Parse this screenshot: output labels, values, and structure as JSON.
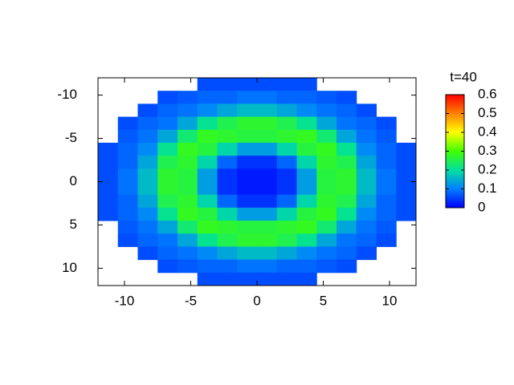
{
  "chart_data": {
    "type": "heatmap",
    "xlim": [
      -12,
      12
    ],
    "ylim": [
      12,
      -12
    ],
    "xticks": [
      -10,
      -5,
      0,
      5,
      10
    ],
    "yticks": [
      -10,
      -5,
      0,
      5,
      10
    ],
    "x": [
      -11.25,
      -9.75,
      -8.25,
      -6.75,
      -5.25,
      -3.75,
      -2.25,
      -0.75,
      0.75,
      2.25,
      3.75,
      5.25,
      6.75,
      8.25,
      9.75,
      11.25
    ],
    "y": [
      -11.25,
      -9.75,
      -8.25,
      -6.75,
      -5.25,
      -3.75,
      -2.25,
      -0.75,
      0.75,
      2.25,
      3.75,
      5.25,
      6.75,
      8.25,
      9.75,
      11.25
    ],
    "z": [
      [
        null,
        null,
        null,
        null,
        null,
        0.06,
        0.06,
        0.06,
        0.06,
        0.06,
        0.06,
        null,
        null,
        null,
        null,
        null
      ],
      [
        null,
        null,
        null,
        0.06,
        0.07,
        0.08,
        0.08,
        0.09,
        0.09,
        0.08,
        0.08,
        0.07,
        0.06,
        null,
        null,
        null
      ],
      [
        null,
        null,
        0.06,
        0.08,
        0.09,
        0.11,
        0.14,
        0.16,
        0.16,
        0.14,
        0.11,
        0.09,
        0.08,
        0.06,
        null,
        null
      ],
      [
        null,
        0.06,
        0.08,
        0.09,
        0.14,
        0.21,
        0.25,
        0.27,
        0.27,
        0.25,
        0.21,
        0.14,
        0.09,
        0.08,
        0.06,
        null
      ],
      [
        null,
        0.07,
        0.09,
        0.14,
        0.23,
        0.28,
        0.27,
        0.26,
        0.26,
        0.27,
        0.28,
        0.23,
        0.14,
        0.09,
        0.07,
        null
      ],
      [
        0.06,
        0.08,
        0.11,
        0.21,
        0.28,
        0.26,
        0.19,
        0.13,
        0.13,
        0.19,
        0.26,
        0.28,
        0.21,
        0.11,
        0.08,
        0.06
      ],
      [
        0.06,
        0.08,
        0.14,
        0.25,
        0.27,
        0.19,
        0.08,
        0.04,
        0.04,
        0.08,
        0.19,
        0.27,
        0.25,
        0.14,
        0.08,
        0.06
      ],
      [
        0.06,
        0.09,
        0.16,
        0.27,
        0.26,
        0.13,
        0.04,
        0.02,
        0.02,
        0.04,
        0.13,
        0.26,
        0.27,
        0.16,
        0.09,
        0.06
      ],
      [
        0.06,
        0.09,
        0.16,
        0.27,
        0.26,
        0.13,
        0.04,
        0.02,
        0.02,
        0.04,
        0.13,
        0.26,
        0.27,
        0.16,
        0.09,
        0.06
      ],
      [
        0.06,
        0.08,
        0.14,
        0.25,
        0.27,
        0.19,
        0.08,
        0.04,
        0.04,
        0.08,
        0.19,
        0.27,
        0.25,
        0.14,
        0.08,
        0.06
      ],
      [
        0.06,
        0.08,
        0.11,
        0.21,
        0.28,
        0.26,
        0.19,
        0.13,
        0.13,
        0.19,
        0.26,
        0.28,
        0.21,
        0.11,
        0.08,
        0.06
      ],
      [
        null,
        0.07,
        0.09,
        0.14,
        0.23,
        0.28,
        0.27,
        0.26,
        0.26,
        0.27,
        0.28,
        0.23,
        0.14,
        0.09,
        0.07,
        null
      ],
      [
        null,
        0.06,
        0.08,
        0.09,
        0.14,
        0.21,
        0.25,
        0.27,
        0.27,
        0.25,
        0.21,
        0.14,
        0.09,
        0.08,
        0.06,
        null
      ],
      [
        null,
        null,
        0.06,
        0.08,
        0.09,
        0.11,
        0.14,
        0.16,
        0.16,
        0.14,
        0.11,
        0.09,
        0.08,
        0.06,
        null,
        null
      ],
      [
        null,
        null,
        null,
        0.06,
        0.07,
        0.08,
        0.08,
        0.09,
        0.09,
        0.08,
        0.08,
        0.07,
        0.06,
        null,
        null,
        null
      ],
      [
        null,
        null,
        null,
        null,
        null,
        0.06,
        0.06,
        0.06,
        0.06,
        0.06,
        0.06,
        null,
        null,
        null,
        null,
        null
      ]
    ],
    "colorbar": {
      "title": "t=40",
      "lim": [
        0,
        0.6
      ],
      "ticks": [
        0,
        0.1,
        0.2,
        0.3,
        0.4,
        0.5,
        0.6
      ]
    },
    "colormap": [
      "#0000ff",
      "#0080ff",
      "#00e0a0",
      "#40ff00",
      "#ffff00",
      "#ff8000",
      "#ff0000"
    ]
  }
}
